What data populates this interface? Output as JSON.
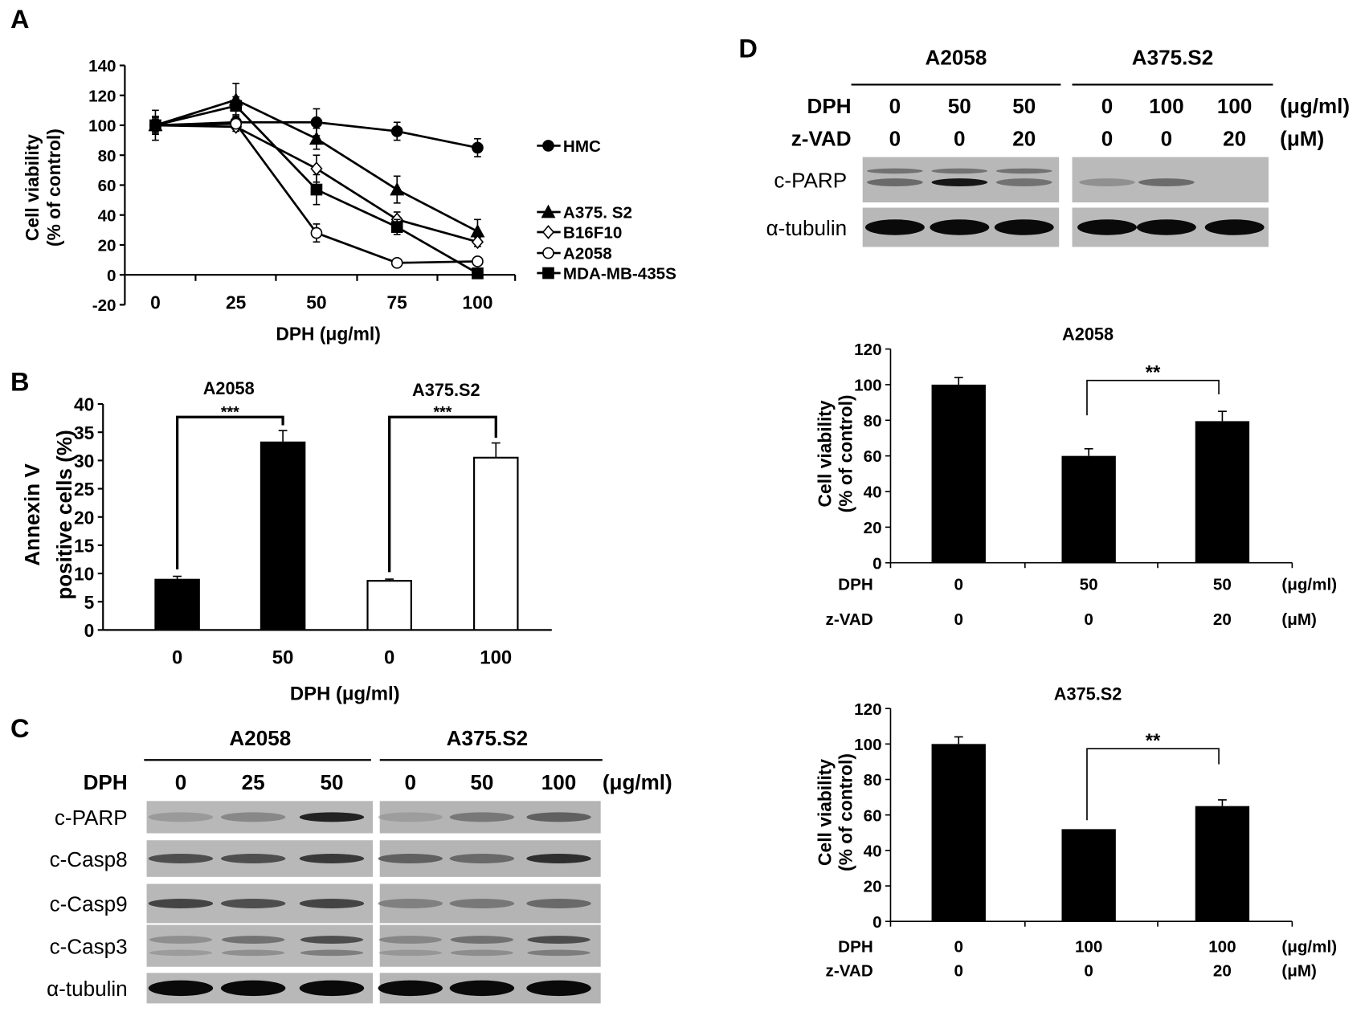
{
  "panels": {
    "A": "A",
    "B": "B",
    "C": "C",
    "D": "D"
  },
  "chart_data": [
    {
      "id": "A",
      "type": "line",
      "x": [
        0,
        25,
        50,
        75,
        100
      ],
      "xtick_labels": [
        "0",
        "25",
        "50",
        "75",
        "100"
      ],
      "xlabel": "DPH (μg/ml)",
      "ylabel": [
        "Cell viability",
        "(% of control)"
      ],
      "ylim": [
        -20,
        140
      ],
      "yticks": [
        -20,
        0,
        20,
        40,
        60,
        80,
        100,
        120,
        140
      ],
      "legend_position": "right",
      "grid": false,
      "series": [
        {
          "name": "HMC",
          "marker": "filled-circle",
          "values": [
            100,
            102,
            102,
            96,
            85
          ],
          "errors": [
            6,
            3,
            9,
            6,
            6
          ]
        },
        {
          "name": "A375. S2",
          "marker": "filled-triangle",
          "values": [
            100,
            117,
            91,
            57,
            29
          ],
          "errors": [
            6,
            11,
            7,
            9,
            8
          ]
        },
        {
          "name": "B16F10",
          "marker": "open-diamond",
          "values": [
            100,
            99,
            71,
            37,
            22
          ],
          "errors": [
            4,
            3,
            9,
            5,
            3
          ]
        },
        {
          "name": "A2058",
          "marker": "open-circle",
          "values": [
            100,
            101,
            28,
            8,
            9
          ],
          "errors": [
            5,
            3,
            6,
            1,
            1
          ]
        },
        {
          "name": "MDA-MB-435S",
          "marker": "filled-square",
          "values": [
            100,
            113,
            57,
            32,
            1
          ],
          "errors": [
            10,
            6,
            10,
            5,
            1
          ]
        }
      ]
    },
    {
      "id": "B",
      "type": "bar",
      "group_labels": [
        "A2058",
        "A375.S2"
      ],
      "categories": [
        "0",
        "50",
        "0",
        "100"
      ],
      "values": [
        8.9,
        33.2,
        8.7,
        30.5
      ],
      "errors": [
        0.6,
        2.1,
        0.3,
        2.6
      ],
      "bar_fills": [
        "#000000",
        "#000000",
        "#ffffff",
        "#ffffff"
      ],
      "xlabel": "DPH  (μg/ml)",
      "ylabel": [
        "Annexin V",
        "positive cells  (%)"
      ],
      "ylim": [
        0,
        40
      ],
      "yticks": [
        0,
        5,
        10,
        15,
        20,
        25,
        30,
        35,
        40
      ],
      "significance": [
        {
          "from": 0,
          "to": 1,
          "label": "***"
        },
        {
          "from": 2,
          "to": 3,
          "label": "***"
        }
      ]
    },
    {
      "id": "D-A2058",
      "type": "bar",
      "title": "A2058",
      "row_labels": {
        "dph": "DPH",
        "zvad": "z-VAD"
      },
      "units": {
        "dph": "(μg/ml)",
        "zvad": "(μM)"
      },
      "dph": [
        "0",
        "50",
        "50"
      ],
      "zvad": [
        "0",
        "0",
        "20"
      ],
      "values": [
        100,
        60,
        79.5
      ],
      "errors": [
        4,
        4,
        5.5
      ],
      "ylabel": [
        "Cell viability",
        "(% of control)"
      ],
      "ylim": [
        0,
        120
      ],
      "yticks": [
        0,
        20,
        40,
        60,
        80,
        100,
        120
      ],
      "significance": [
        {
          "from": 1,
          "to": 2,
          "label": "**"
        }
      ]
    },
    {
      "id": "D-A375.S2",
      "type": "bar",
      "title": "A375.S2",
      "row_labels": {
        "dph": "DPH",
        "zvad": "z-VAD"
      },
      "units": {
        "dph": "(μg/ml)",
        "zvad": "(μM)"
      },
      "dph": [
        "0",
        "100",
        "100"
      ],
      "zvad": [
        "0",
        "0",
        "20"
      ],
      "values": [
        100,
        52,
        65
      ],
      "errors": [
        4,
        0,
        3.5
      ],
      "ylabel": [
        "Cell viability",
        "(% of control)"
      ],
      "ylim": [
        0,
        120
      ],
      "yticks": [
        0,
        20,
        40,
        60,
        80,
        100,
        120
      ],
      "significance": [
        {
          "from": 1,
          "to": 2,
          "label": "**"
        }
      ]
    }
  ],
  "blot_C": {
    "groups": [
      "A2058",
      "A375.S2"
    ],
    "dph_label": "DPH",
    "dph": [
      "0",
      "25",
      "50",
      "0",
      "50",
      "100"
    ],
    "unit": "(μg/ml)",
    "rows": [
      {
        "label": "c-PARP",
        "intensity": [
          0.2,
          0.35,
          0.9,
          0.15,
          0.45,
          0.6
        ]
      },
      {
        "label": "c-Casp8",
        "intensity": [
          0.7,
          0.7,
          0.8,
          0.6,
          0.55,
          0.85
        ]
      },
      {
        "label": "c-Casp9",
        "intensity": [
          0.75,
          0.7,
          0.75,
          0.4,
          0.45,
          0.55
        ]
      },
      {
        "label": "c-Casp3",
        "intensity": [
          0.3,
          0.5,
          0.7,
          0.35,
          0.5,
          0.7
        ]
      },
      {
        "label": "α-tubulin",
        "intensity": [
          1,
          1,
          1,
          1,
          1,
          1
        ]
      }
    ]
  },
  "blot_D": {
    "groups": [
      "A2058",
      "A375.S2"
    ],
    "dph_label": "DPH",
    "zvad_label": "z-VAD",
    "dph": [
      "0",
      "50",
      "50",
      "0",
      "100",
      "100"
    ],
    "zvad": [
      "0",
      "0",
      "20",
      "0",
      "0",
      "20"
    ],
    "dph_unit": "(μg/ml)",
    "zvad_unit": "(μM)",
    "rows": [
      {
        "label": "c-PARP",
        "intensity": [
          0.55,
          0.95,
          0.5,
          0.3,
          0.55,
          0
        ]
      },
      {
        "label": "α-tubulin",
        "intensity": [
          1,
          1,
          1,
          1,
          1,
          1
        ]
      }
    ]
  }
}
